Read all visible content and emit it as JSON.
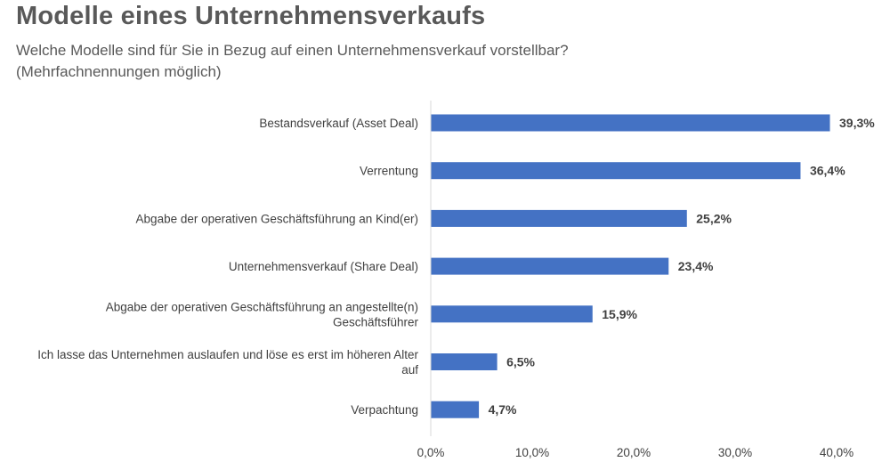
{
  "header": {
    "title": "Modelle eines Unternehmensverkaufs",
    "subtitle": "Welche Modelle sind für Sie in Bezug auf einen Unternehmensverkauf vorstellbar?\n(Mehrfachnennungen möglich)"
  },
  "colors": {
    "bar": "#4472C4",
    "axis": "#D9D9D9",
    "text": "#404040"
  },
  "chart_data": {
    "type": "bar",
    "orientation": "horizontal",
    "categories": [
      [
        "Bestandsverkauf (Asset Deal)"
      ],
      [
        "Verrentung"
      ],
      [
        "Abgabe der operativen Geschäftsführung an Kind(er)"
      ],
      [
        "Unternehmensverkauf (Share Deal)"
      ],
      [
        "Abgabe der operativen Geschäftsführung an angestellte(n)",
        "Geschäftsführer"
      ],
      [
        "Ich lasse das Unternehmen auslaufen und löse es erst im höheren Alter",
        "auf"
      ],
      [
        "Verpachtung"
      ]
    ],
    "values": [
      39.3,
      36.4,
      25.2,
      23.4,
      15.9,
      6.5,
      4.7
    ],
    "value_labels": [
      "39,3%",
      "36,4%",
      "25,2%",
      "23,4%",
      "15,9%",
      "6,5%",
      "4,7%"
    ],
    "xlim": [
      0,
      40
    ],
    "xticks": [
      0,
      10,
      20,
      30,
      40
    ],
    "xtick_labels": [
      "0,0%",
      "10,0%",
      "20,0%",
      "30,0%",
      "40,0%"
    ],
    "xlabel": "",
    "ylabel": "",
    "grid": false,
    "legend": "none"
  }
}
